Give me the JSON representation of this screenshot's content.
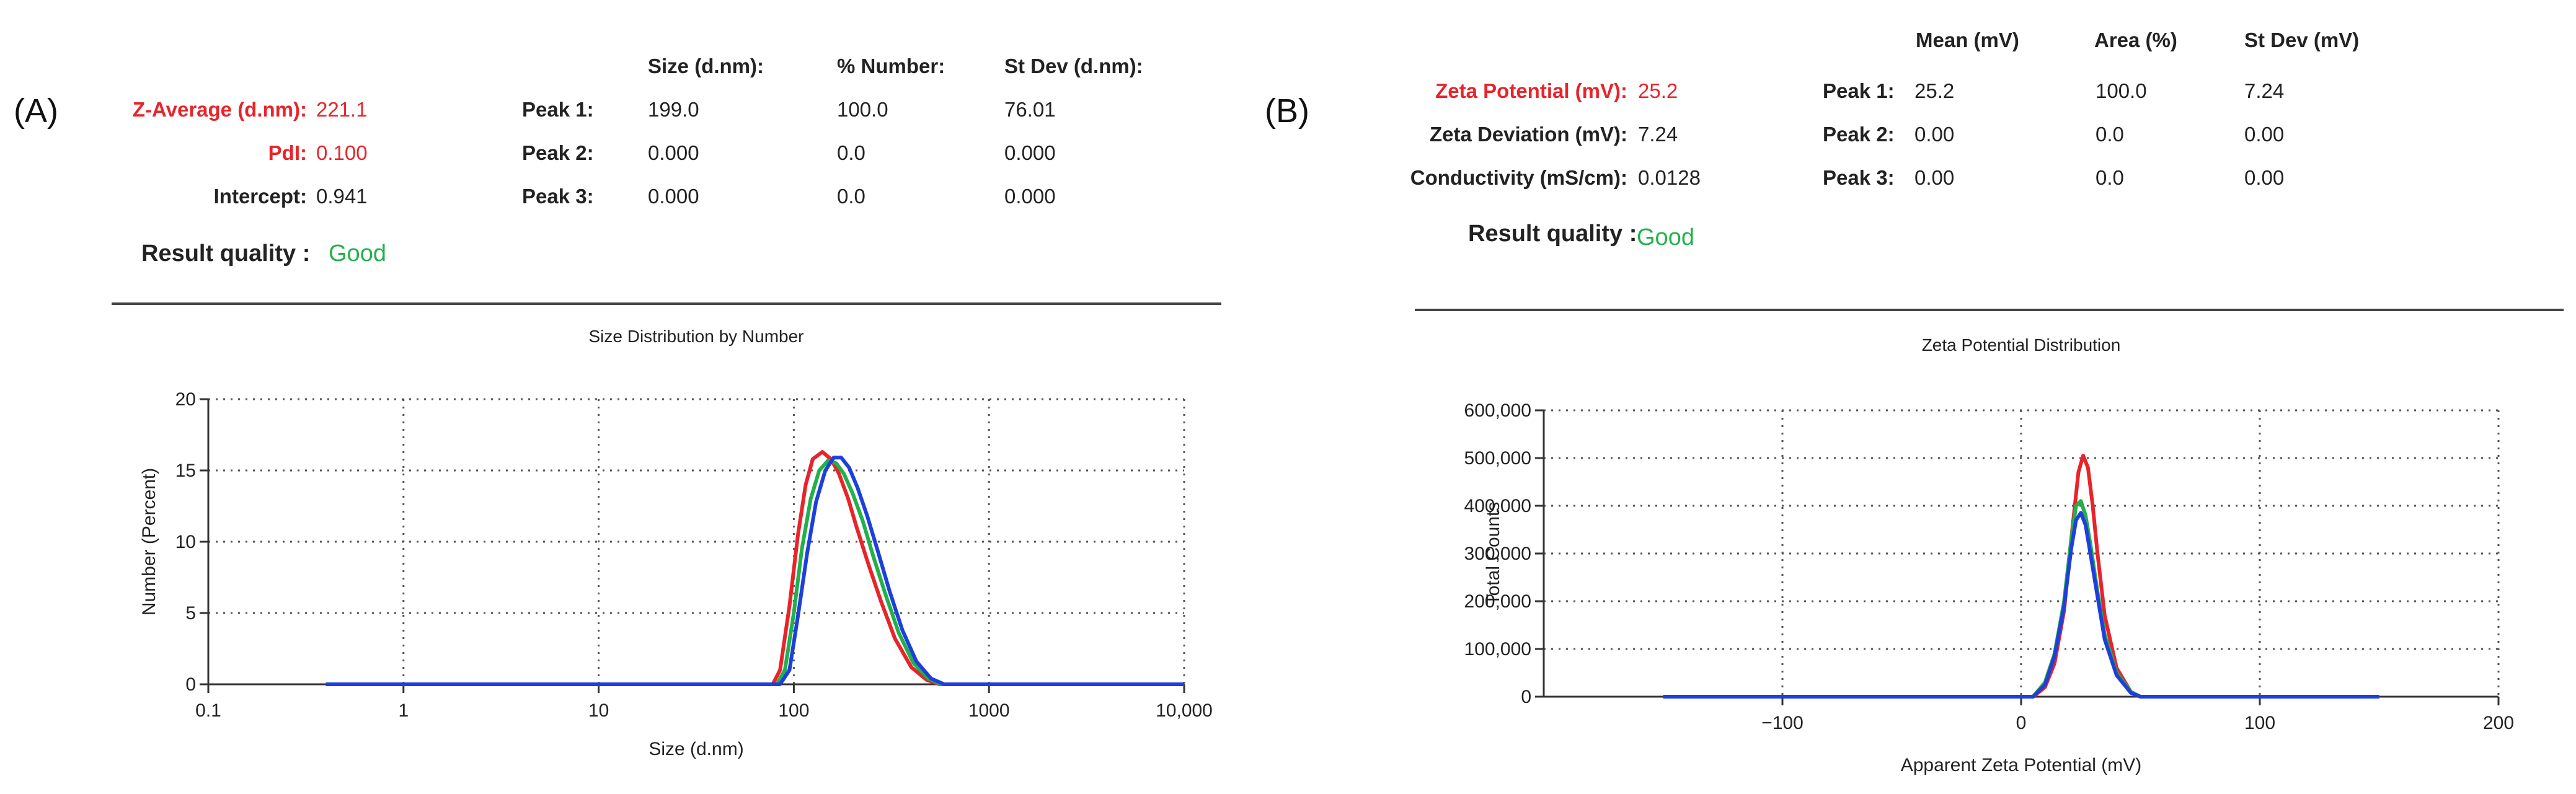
{
  "panel_a": {
    "letter": "(A)",
    "summary": [
      {
        "label": "Z-Average (d.nm):",
        "value": "221.1",
        "color": "red"
      },
      {
        "label": "PdI:",
        "value": "0.100",
        "color": "red"
      },
      {
        "label": "Intercept:",
        "value": "0.941",
        "color": "black"
      }
    ],
    "table_headers": [
      "Size (d.nm):",
      "% Number:",
      "St Dev (d.nm):"
    ],
    "peaks": [
      {
        "label": "Peak 1:",
        "values": [
          "199.0",
          "100.0",
          "76.01"
        ]
      },
      {
        "label": "Peak 2:",
        "values": [
          "0.000",
          "0.0",
          "0.000"
        ]
      },
      {
        "label": "Peak 3:",
        "values": [
          "0.000",
          "0.0",
          "0.000"
        ]
      }
    ],
    "result_quality_label": "Result quality :",
    "result_quality_value": "Good"
  },
  "panel_b": {
    "letter": "(B)",
    "summary": [
      {
        "label": "Zeta Potential (mV):",
        "value": "25.2",
        "color": "red"
      },
      {
        "label": "Zeta Deviation (mV):",
        "value": "7.24",
        "color": "black"
      },
      {
        "label": "Conductivity (mS/cm):",
        "value": "0.0128",
        "color": "black"
      }
    ],
    "table_headers": [
      "Mean (mV)",
      "Area (%)",
      "St Dev (mV)"
    ],
    "peaks": [
      {
        "label": "Peak 1:",
        "values": [
          "25.2",
          "100.0",
          "7.24"
        ]
      },
      {
        "label": "Peak 2:",
        "values": [
          "0.00",
          "0.0",
          "0.00"
        ]
      },
      {
        "label": "Peak 3:",
        "values": [
          "0.00",
          "0.0",
          "0.00"
        ]
      }
    ],
    "result_quality_label": "Result quality :",
    "result_quality_value": "Good"
  },
  "colors": {
    "red": "#e8242b",
    "green": "#22b04b",
    "blue": "#1f3fdc",
    "label_red": "#e8242b"
  },
  "chart_data": [
    {
      "type": "line",
      "title": "Size Distribution by Number",
      "xlabel": "Size (d.nm)",
      "ylabel": "Number (Percent)",
      "xscale": "log",
      "xlim": [
        0.1,
        10000
      ],
      "ylim": [
        0,
        20
      ],
      "xticks": [
        0.1,
        1,
        10,
        100,
        1000,
        10000
      ],
      "xtick_labels": [
        "0.1",
        "1",
        "10",
        "100",
        "1000",
        "10,000"
      ],
      "yticks": [
        0,
        5,
        10,
        15,
        20
      ],
      "ytick_labels": [
        "0",
        "5",
        "10",
        "15",
        "20"
      ],
      "grid": true,
      "series": [
        {
          "color": "red",
          "x": [
            0.4,
            78,
            85,
            95,
            105,
            115,
            125,
            140,
            155,
            170,
            190,
            210,
            240,
            280,
            330,
            400,
            480,
            560,
            10000
          ],
          "y": [
            0,
            0,
            1.0,
            5.5,
            10.5,
            14,
            15.8,
            16.3,
            15.8,
            14.8,
            13,
            11,
            8.5,
            5.8,
            3.2,
            1.2,
            0.3,
            0,
            0
          ]
        },
        {
          "color": "green",
          "x": [
            0.4,
            82,
            90,
            100,
            110,
            122,
            135,
            150,
            165,
            180,
            200,
            225,
            255,
            295,
            345,
            410,
            490,
            570,
            10000
          ],
          "y": [
            0,
            0,
            1.0,
            5.0,
            9.5,
            13,
            15,
            15.7,
            15.5,
            14.8,
            13.4,
            11.5,
            9.0,
            6.3,
            3.6,
            1.5,
            0.4,
            0,
            0
          ]
        },
        {
          "color": "blue",
          "x": [
            0.4,
            85,
            95,
            105,
            117,
            130,
            145,
            160,
            175,
            192,
            212,
            238,
            270,
            310,
            360,
            425,
            505,
            590,
            10000
          ],
          "y": [
            0,
            0,
            1.0,
            4.8,
            9.2,
            12.8,
            15.0,
            15.9,
            15.9,
            15.2,
            13.8,
            11.8,
            9.3,
            6.5,
            3.8,
            1.6,
            0.4,
            0,
            0
          ]
        }
      ]
    },
    {
      "type": "line",
      "title": "Zeta Potential Distribution",
      "xlabel": "Apparent Zeta Potential (mV)",
      "ylabel": "Total Counts",
      "xlim": [
        -200,
        200
      ],
      "ylim": [
        0,
        600000
      ],
      "xticks": [
        -100,
        0,
        100,
        200
      ],
      "xtick_labels": [
        "−100",
        "0",
        "100",
        "200"
      ],
      "yticks": [
        0,
        100000,
        200000,
        300000,
        400000,
        500000,
        600000
      ],
      "ytick_labels": [
        "0",
        "100,000",
        "200,000",
        "300,000",
        "400,000",
        "500,000",
        "600,000"
      ],
      "grid": true,
      "series": [
        {
          "color": "red",
          "x": [
            -150,
            5,
            10,
            14,
            18,
            21,
            24,
            26,
            28,
            30,
            32,
            35,
            40,
            46,
            50,
            150
          ],
          "y": [
            0,
            0,
            20000,
            70000,
            180000,
            330000,
            470000,
            505000,
            480000,
            400000,
            300000,
            170000,
            60000,
            10000,
            0,
            0
          ]
        },
        {
          "color": "green",
          "x": [
            -150,
            5,
            10,
            14,
            18,
            21,
            23,
            25,
            27,
            29,
            32,
            35,
            40,
            46,
            50,
            150
          ],
          "y": [
            0,
            0,
            30000,
            90000,
            200000,
            330000,
            400000,
            410000,
            380000,
            320000,
            220000,
            130000,
            50000,
            10000,
            0,
            0
          ]
        },
        {
          "color": "blue",
          "x": [
            -150,
            5,
            10,
            14,
            18,
            21,
            23,
            25,
            27,
            29,
            32,
            35,
            40,
            46,
            50,
            150
          ],
          "y": [
            0,
            0,
            25000,
            85000,
            190000,
            310000,
            370000,
            385000,
            360000,
            300000,
            210000,
            120000,
            45000,
            8000,
            0,
            0
          ]
        }
      ]
    }
  ]
}
